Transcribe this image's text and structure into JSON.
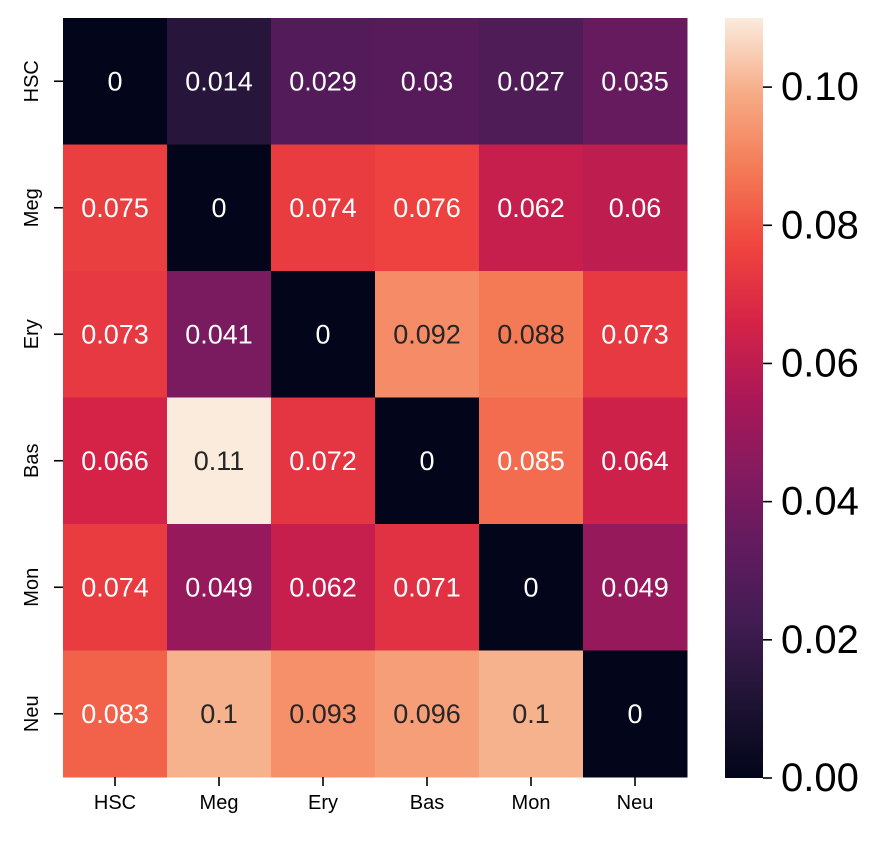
{
  "chart_data": {
    "type": "heatmap",
    "x_categories": [
      "HSC",
      "Meg",
      "Ery",
      "Bas",
      "Mon",
      "Neu"
    ],
    "y_categories": [
      "HSC",
      "Meg",
      "Ery",
      "Bas",
      "Mon",
      "Neu"
    ],
    "values": [
      [
        0,
        0.014,
        0.029,
        0.03,
        0.027,
        0.035
      ],
      [
        0.075,
        0,
        0.074,
        0.076,
        0.062,
        0.06
      ],
      [
        0.073,
        0.041,
        0,
        0.092,
        0.088,
        0.073
      ],
      [
        0.066,
        0.11,
        0.072,
        0,
        0.085,
        0.064
      ],
      [
        0.074,
        0.049,
        0.062,
        0.071,
        0,
        0.049
      ],
      [
        0.083,
        0.1,
        0.093,
        0.096,
        0.1,
        0
      ]
    ],
    "annotations": [
      [
        "0",
        "0.014",
        "0.029",
        "0.03",
        "0.027",
        "0.035"
      ],
      [
        "0.075",
        "0",
        "0.074",
        "0.076",
        "0.062",
        "0.06"
      ],
      [
        "0.073",
        "0.041",
        "0",
        "0.092",
        "0.088",
        "0.073"
      ],
      [
        "0.066",
        "0.11",
        "0.072",
        "0",
        "0.085",
        "0.064"
      ],
      [
        "0.074",
        "0.049",
        "0.062",
        "0.071",
        "0",
        "0.049"
      ],
      [
        "0.083",
        "0.1",
        "0.093",
        "0.096",
        "0.1",
        "0"
      ]
    ],
    "colormap": "rocket",
    "color_range": [
      0,
      0.11
    ],
    "colorbar_ticks": [
      0.0,
      0.02,
      0.04,
      0.06,
      0.08,
      0.1
    ],
    "colorbar_tick_labels": [
      "0.00",
      "0.02",
      "0.04",
      "0.06",
      "0.08",
      "0.10"
    ],
    "title": "",
    "xlabel": "",
    "ylabel": ""
  }
}
